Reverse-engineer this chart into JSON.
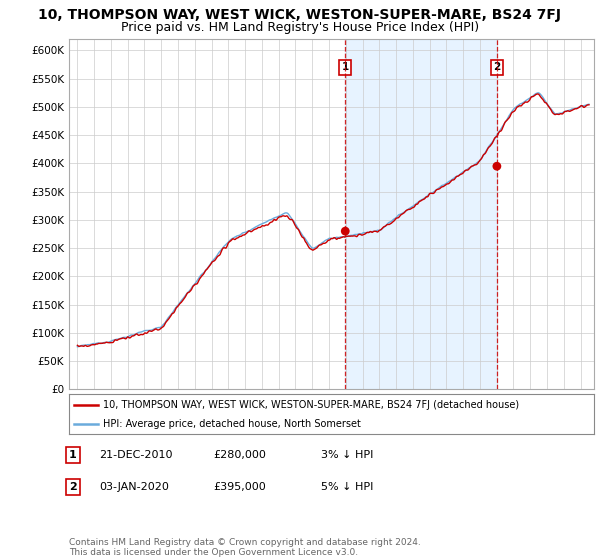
{
  "title": "10, THOMPSON WAY, WEST WICK, WESTON-SUPER-MARE, BS24 7FJ",
  "subtitle": "Price paid vs. HM Land Registry's House Price Index (HPI)",
  "ylabel_ticks": [
    "£0",
    "£50K",
    "£100K",
    "£150K",
    "£200K",
    "£250K",
    "£300K",
    "£350K",
    "£400K",
    "£450K",
    "£500K",
    "£550K",
    "£600K"
  ],
  "ylim": [
    0,
    620000
  ],
  "yticks": [
    0,
    50000,
    100000,
    150000,
    200000,
    250000,
    300000,
    350000,
    400000,
    450000,
    500000,
    550000,
    600000
  ],
  "xlim_start": 1994.5,
  "xlim_end": 2025.8,
  "xticks": [
    1995,
    1996,
    1997,
    1998,
    1999,
    2000,
    2001,
    2002,
    2003,
    2004,
    2005,
    2006,
    2007,
    2008,
    2009,
    2010,
    2011,
    2012,
    2013,
    2014,
    2015,
    2016,
    2017,
    2018,
    2019,
    2020,
    2021,
    2022,
    2023,
    2024,
    2025
  ],
  "hpi_color": "#6aabdc",
  "price_color": "#CC0000",
  "vline_color": "#CC0000",
  "shade_color": "#ddeeff",
  "transactions": [
    {
      "year": 2010.97,
      "price": 280000,
      "label": "1"
    },
    {
      "year": 2020.01,
      "price": 395000,
      "label": "2"
    }
  ],
  "legend_line1": "10, THOMPSON WAY, WEST WICK, WESTON-SUPER-MARE, BS24 7FJ (detached house)",
  "legend_line2": "HPI: Average price, detached house, North Somerset",
  "annotation1_date": "21-DEC-2010",
  "annotation1_price": "£280,000",
  "annotation1_pct": "3% ↓ HPI",
  "annotation2_date": "03-JAN-2020",
  "annotation2_price": "£395,000",
  "annotation2_pct": "5% ↓ HPI",
  "footer": "Contains HM Land Registry data © Crown copyright and database right 2024.\nThis data is licensed under the Open Government Licence v3.0.",
  "background_color": "#ffffff",
  "grid_color": "#cccccc",
  "title_fontsize": 10,
  "subtitle_fontsize": 9
}
